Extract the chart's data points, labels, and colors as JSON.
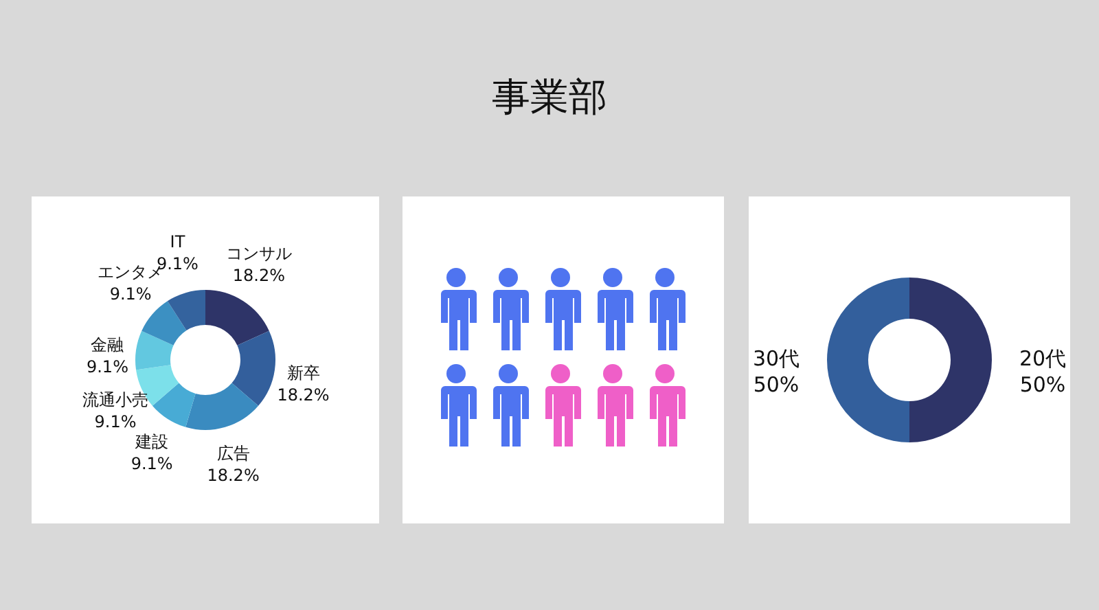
{
  "chart_data": [
    {
      "type": "donut",
      "title": "事業部",
      "categories": [
        "コンサル",
        "新卒",
        "広告",
        "建設",
        "流通小売",
        "金融",
        "エンタメ",
        "IT"
      ],
      "values": [
        18.2,
        18.2,
        18.2,
        9.1,
        9.1,
        9.1,
        9.1,
        9.1
      ],
      "value_labels": [
        "18.2%",
        "18.2%",
        "18.2%",
        "9.1%",
        "9.1%",
        "9.1%",
        "9.1%",
        "9.1%"
      ],
      "colors": [
        "#2e3468",
        "#335f9c",
        "#3a8bc0",
        "#48abd5",
        "#7ce0ea",
        "#62c8e0",
        "#3c90c2",
        "#34639e"
      ]
    },
    {
      "type": "donut",
      "categories": [
        "20代",
        "30代"
      ],
      "values": [
        50,
        50
      ],
      "value_labels": [
        "50%",
        "50%"
      ],
      "colors": [
        "#2e3468",
        "#335f9c"
      ]
    }
  ]
}
